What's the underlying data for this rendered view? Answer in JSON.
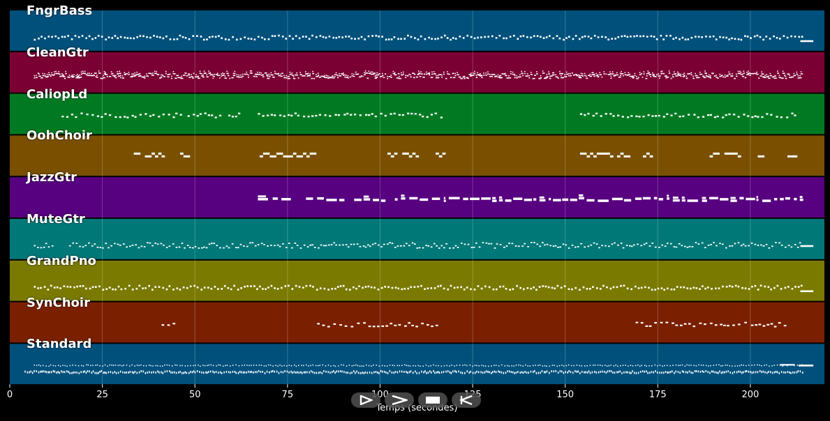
{
  "tracks": [
    {
      "name": "FngrBass",
      "color": "#00507c",
      "pattern": "bass"
    },
    {
      "name": "CleanGtr",
      "color": "#7a0033",
      "pattern": "dense"
    },
    {
      "name": "CaliopLd",
      "color": "#007a22",
      "pattern": "lead"
    },
    {
      "name": "OohChoir",
      "color": "#7a5000",
      "pattern": "choir"
    },
    {
      "name": "JazzGtr",
      "color": "#570080",
      "pattern": "jazz"
    },
    {
      "name": "MuteGtr",
      "color": "#007878",
      "pattern": "mute"
    },
    {
      "name": "GrandPno",
      "color": "#7a7a00",
      "pattern": "bass"
    },
    {
      "name": "SynChoir",
      "color": "#7a2000",
      "pattern": "synchoir"
    },
    {
      "name": "Standard",
      "color": "#00507c",
      "pattern": "drums"
    }
  ],
  "axis": {
    "label": "Temps (secondes)",
    "ticks": [
      "0",
      "25",
      "50",
      "75",
      "100",
      "125",
      "150",
      "175",
      "200"
    ],
    "xlim": [
      0,
      220
    ]
  },
  "transport": {
    "play_icon": "play-outline-icon",
    "fast_forward_icon": "fast-forward-icon",
    "stop_icon": "stop-icon",
    "rewind_icon": "rewind-icon"
  }
}
